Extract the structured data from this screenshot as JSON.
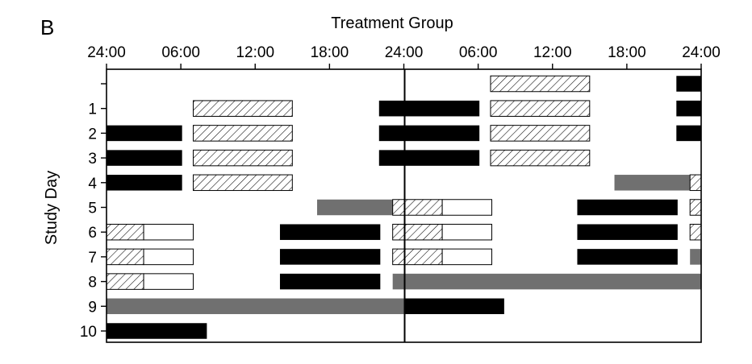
{
  "panel_label": "B",
  "colors": {
    "sleep": "#000000",
    "gray": "#707070",
    "hatch": "#000000",
    "open": "#ffffff"
  },
  "chart_data": {
    "type": "timeline",
    "title": "Treatment Group",
    "ylabel": "Study Day",
    "x_ticks": [
      "24:00",
      "06:00",
      "12:00",
      "18:00",
      "24:00",
      "06:00",
      "12:00",
      "18:00",
      "24:00"
    ],
    "x_range_hours": [
      0,
      48
    ],
    "row_labels": [
      "",
      "1",
      "2",
      "3",
      "4",
      "5",
      "6",
      "7",
      "8",
      "9",
      "10"
    ],
    "divider_hour": 24,
    "bar_types": {
      "black": "solid black",
      "gray": "solid gray",
      "hatched": "hatched",
      "open": "open"
    },
    "bars": [
      {
        "row": 0,
        "type": "hatched",
        "start": 31.0,
        "end": 39.0
      },
      {
        "row": 0,
        "type": "black",
        "start": 46.0,
        "end": 48.0
      },
      {
        "row": 1,
        "type": "hatched",
        "start": 7.0,
        "end": 15.0
      },
      {
        "row": 1,
        "type": "black",
        "start": 22.0,
        "end": 30.1
      },
      {
        "row": 1,
        "type": "hatched",
        "start": 31.0,
        "end": 39.0
      },
      {
        "row": 1,
        "type": "black",
        "start": 46.0,
        "end": 48.0
      },
      {
        "row": 2,
        "type": "black",
        "start": 0.0,
        "end": 6.1
      },
      {
        "row": 2,
        "type": "hatched",
        "start": 7.0,
        "end": 15.0
      },
      {
        "row": 2,
        "type": "black",
        "start": 22.0,
        "end": 30.1
      },
      {
        "row": 2,
        "type": "hatched",
        "start": 31.0,
        "end": 39.0
      },
      {
        "row": 2,
        "type": "black",
        "start": 46.0,
        "end": 48.0
      },
      {
        "row": 3,
        "type": "black",
        "start": 0.0,
        "end": 6.1
      },
      {
        "row": 3,
        "type": "hatched",
        "start": 7.0,
        "end": 15.0
      },
      {
        "row": 3,
        "type": "black",
        "start": 22.0,
        "end": 30.1
      },
      {
        "row": 3,
        "type": "hatched",
        "start": 31.0,
        "end": 39.0
      },
      {
        "row": 4,
        "type": "black",
        "start": 0.0,
        "end": 6.1
      },
      {
        "row": 4,
        "type": "hatched",
        "start": 7.0,
        "end": 15.0
      },
      {
        "row": 4,
        "type": "gray",
        "start": 41.0,
        "end": 47.1
      },
      {
        "row": 4,
        "type": "hatched",
        "start": 47.1,
        "end": 48.0
      },
      {
        "row": 5,
        "type": "gray",
        "start": 17.0,
        "end": 23.1
      },
      {
        "row": 5,
        "type": "hatched",
        "start": 23.1,
        "end": 27.1
      },
      {
        "row": 5,
        "type": "open",
        "start": 27.1,
        "end": 31.1
      },
      {
        "row": 5,
        "type": "black",
        "start": 38.0,
        "end": 46.1
      },
      {
        "row": 5,
        "type": "hatched",
        "start": 47.1,
        "end": 48.0
      },
      {
        "row": 6,
        "type": "hatched",
        "start": 0.0,
        "end": 3.0
      },
      {
        "row": 6,
        "type": "open",
        "start": 3.0,
        "end": 7.0
      },
      {
        "row": 6,
        "type": "black",
        "start": 14.0,
        "end": 22.1
      },
      {
        "row": 6,
        "type": "hatched",
        "start": 23.1,
        "end": 27.1
      },
      {
        "row": 6,
        "type": "open",
        "start": 27.1,
        "end": 31.1
      },
      {
        "row": 6,
        "type": "black",
        "start": 38.0,
        "end": 46.1
      },
      {
        "row": 6,
        "type": "hatched",
        "start": 47.1,
        "end": 48.0
      },
      {
        "row": 7,
        "type": "hatched",
        "start": 0.0,
        "end": 3.0
      },
      {
        "row": 7,
        "type": "open",
        "start": 3.0,
        "end": 7.0
      },
      {
        "row": 7,
        "type": "black",
        "start": 14.0,
        "end": 22.1
      },
      {
        "row": 7,
        "type": "hatched",
        "start": 23.1,
        "end": 27.1
      },
      {
        "row": 7,
        "type": "open",
        "start": 27.1,
        "end": 31.1
      },
      {
        "row": 7,
        "type": "black",
        "start": 38.0,
        "end": 46.1
      },
      {
        "row": 7,
        "type": "gray",
        "start": 47.1,
        "end": 48.0
      },
      {
        "row": 8,
        "type": "hatched",
        "start": 0.0,
        "end": 3.0
      },
      {
        "row": 8,
        "type": "open",
        "start": 3.0,
        "end": 7.0
      },
      {
        "row": 8,
        "type": "black",
        "start": 14.0,
        "end": 22.1
      },
      {
        "row": 8,
        "type": "gray",
        "start": 23.1,
        "end": 48.0
      },
      {
        "row": 9,
        "type": "gray",
        "start": 0.0,
        "end": 24.0
      },
      {
        "row": 9,
        "type": "black",
        "start": 24.0,
        "end": 32.1
      },
      {
        "row": 10,
        "type": "black",
        "start": 0.0,
        "end": 8.1
      }
    ]
  }
}
